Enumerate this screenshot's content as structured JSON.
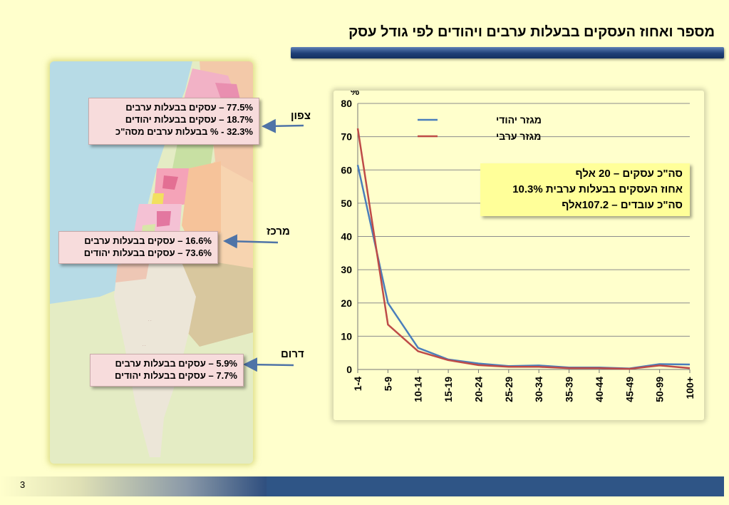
{
  "title": "מספר ואחוז העסקים בבעלות ערבים ויהודים לפי גודל עסק",
  "regions": {
    "north": {
      "label": "צפון",
      "lines": [
        "77.5% – עסקים בבעלות ערבים",
        "18.7% – עסקים בבעלות יהודים",
        "32.3% - % בבעלות ערבים מסה\"כ"
      ]
    },
    "center": {
      "label": "מרכז",
      "lines": [
        "16.6% – עסקים בבעלות ערבים",
        "73.6% – עסקים בבעלות יהודים"
      ]
    },
    "south": {
      "label": "דרום",
      "lines": [
        "5.9% – עסקים בבעלות ערבים",
        "7.7% – עסקים בבעלות יהודים"
      ]
    }
  },
  "info_box": {
    "lines": [
      "סה\"כ עסקים – 20 אלף",
      "אחוז העסקים בבעלות ערבית 10.3%",
      "סה\"כ עובדים – 107.2אלף"
    ]
  },
  "chart_data": {
    "type": "line",
    "categories": [
      "1-4",
      "5-9",
      "10-14",
      "15-19",
      "20-24",
      "25-29",
      "30-34",
      "35-39",
      "40-44",
      "45-49",
      "50-99",
      "100+"
    ],
    "series": [
      {
        "name": "מגזר יהודי",
        "color": "#4a7ebb",
        "values": [
          61.5,
          20,
          6.5,
          3,
          1.8,
          1,
          1.2,
          0.6,
          0.6,
          0.3,
          1.6,
          1.5
        ]
      },
      {
        "name": "מגזר ערבי",
        "color": "#be4b48",
        "values": [
          72.5,
          13.5,
          5.5,
          2.8,
          1.3,
          0.8,
          0.8,
          0.4,
          0.4,
          0.2,
          1.2,
          0.4
        ]
      }
    ],
    "ylabel": "%",
    "ylim": [
      0,
      80
    ],
    "yticks": [
      0,
      10,
      20,
      30,
      40,
      50,
      60,
      70,
      80
    ],
    "grid": true,
    "legend_position": "top-left"
  },
  "page_number": "3",
  "colors": {
    "background": "#ffffcc",
    "accent_blue": "#2f5586"
  }
}
